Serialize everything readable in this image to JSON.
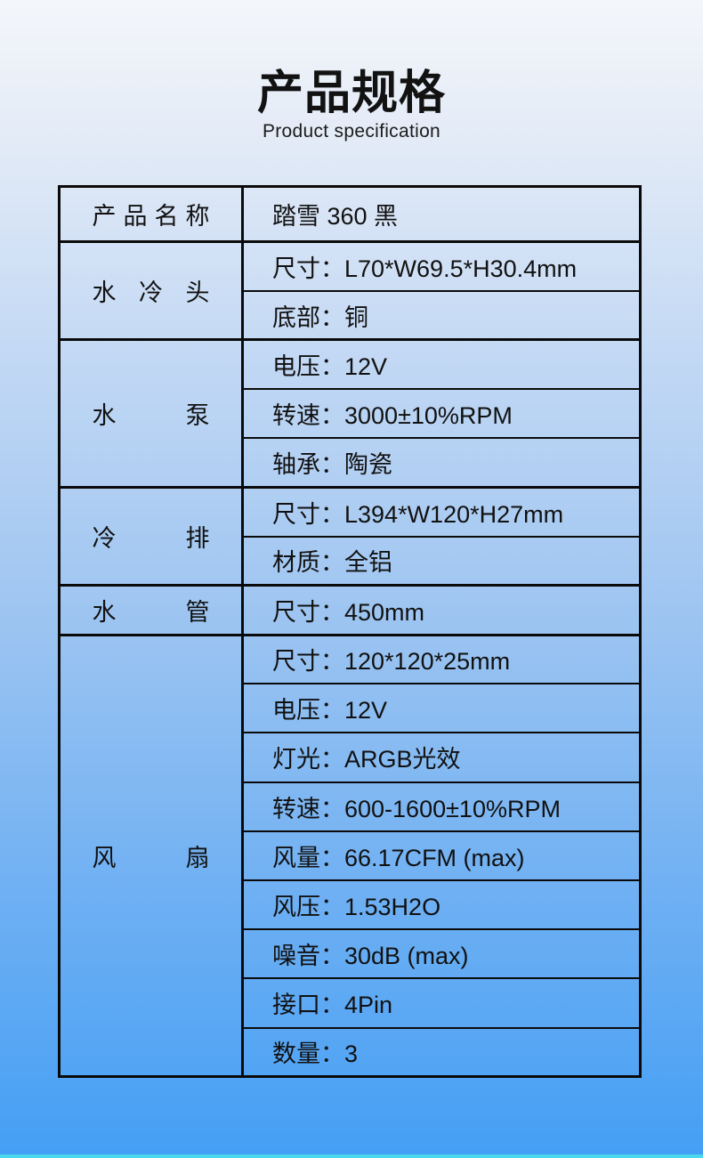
{
  "header": {
    "title": "产品规格",
    "subtitle": "Product specification"
  },
  "table": {
    "sections": [
      {
        "label": "产品名称",
        "rows": [
          {
            "text": "踏雪 360 黑"
          }
        ]
      },
      {
        "label": "水冷头",
        "rows": [
          {
            "text": "尺寸：L70*W69.5*H30.4mm"
          },
          {
            "text": "底部：铜"
          }
        ]
      },
      {
        "label": "水泵",
        "rows": [
          {
            "text": "电压：12V"
          },
          {
            "text": "转速：3000±10%RPM"
          },
          {
            "text": "轴承：陶瓷"
          }
        ]
      },
      {
        "label": "冷排",
        "rows": [
          {
            "text": "尺寸：L394*W120*H27mm"
          },
          {
            "text": "材质：全铝"
          }
        ]
      },
      {
        "label": "水管",
        "rows": [
          {
            "text": "尺寸：450mm"
          }
        ]
      },
      {
        "label": "风扇",
        "rows": [
          {
            "text": "尺寸：120*120*25mm"
          },
          {
            "text": "电压：12V"
          },
          {
            "text": "灯光：ARGB光效"
          },
          {
            "text": "转速：600-1600±10%RPM"
          },
          {
            "text": "风量：66.17CFM (max)"
          },
          {
            "text": "风压：1.53H2O"
          },
          {
            "text": "噪音：30dB (max)"
          },
          {
            "text": "接口：4Pin"
          },
          {
            "text": "数量：3"
          }
        ]
      }
    ]
  },
  "colors": {
    "gradient_top": "#f4f6fa",
    "gradient_bottom": "#459ff4",
    "accent_strip": "#4bd7ec",
    "table_border": "#0a0a0a",
    "text": "#111111"
  }
}
